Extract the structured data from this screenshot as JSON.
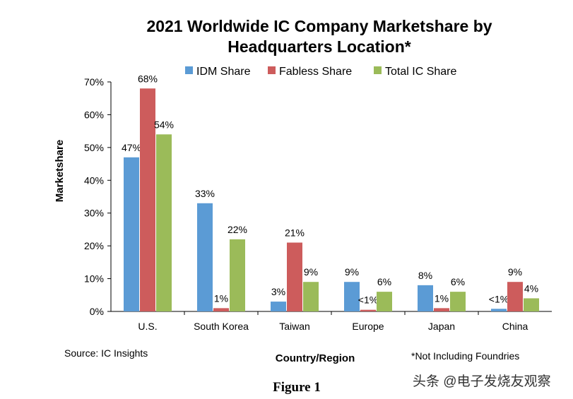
{
  "chart_data": {
    "type": "bar",
    "title_lines": [
      "2021 Worldwide IC Company Marketshare by",
      "Headquarters Location*"
    ],
    "xlabel": "Country/Region",
    "ylabel": "Marketshare",
    "ylim": [
      0,
      70
    ],
    "yticks": [
      0,
      10,
      20,
      30,
      40,
      50,
      60,
      70
    ],
    "ytick_labels": [
      "0%",
      "10%",
      "20%",
      "30%",
      "40%",
      "50%",
      "60%",
      "70%"
    ],
    "categories": [
      "U.S.",
      "South Korea",
      "Taiwan",
      "Europe",
      "Japan",
      "China"
    ],
    "series": [
      {
        "name": "IDM Share",
        "color": "#5b9bd5",
        "values": [
          47,
          33,
          3,
          9,
          8,
          0.8
        ],
        "labels": [
          "47%",
          "33%",
          "3%",
          "9%",
          "8%",
          "<1%"
        ]
      },
      {
        "name": "Fabless Share",
        "color": "#cd5c5c",
        "values": [
          68,
          1,
          21,
          0.5,
          1,
          9
        ],
        "labels": [
          "68%",
          "1%",
          "21%",
          "<1%",
          "1%",
          "9%"
        ]
      },
      {
        "name": "Total IC Share",
        "color": "#9bbb59",
        "values": [
          54,
          22,
          9,
          6,
          6,
          4
        ],
        "labels": [
          "54%",
          "22%",
          "9%",
          "6%",
          "6%",
          "4%"
        ]
      }
    ],
    "legend_position": "top"
  },
  "notes": {
    "source": "Source: IC Insights",
    "footnote": "*Not Including Foundries",
    "figure_caption": "Figure 1",
    "watermark": "头条 @电子发烧友观察"
  }
}
